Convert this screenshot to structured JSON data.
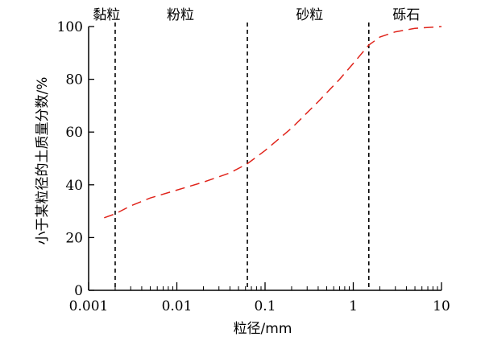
{
  "chart_data": {
    "type": "line",
    "xscale": "log",
    "xlim": [
      0.001,
      10
    ],
    "ylim": [
      0,
      100
    ],
    "xlabel": "粒径/mm",
    "ylabel": "小于某粒径的土质量分数/%",
    "x_ticks": [
      {
        "value": 0.001,
        "label": "0.001"
      },
      {
        "value": 0.01,
        "label": "0.01"
      },
      {
        "value": 0.1,
        "label": "0.1"
      },
      {
        "value": 1,
        "label": "1"
      },
      {
        "value": 10,
        "label": "10"
      }
    ],
    "y_ticks": [
      {
        "value": 0,
        "label": "0"
      },
      {
        "value": 20,
        "label": "20"
      },
      {
        "value": 40,
        "label": "40"
      },
      {
        "value": 60,
        "label": "60"
      },
      {
        "value": 80,
        "label": "80"
      },
      {
        "value": 100,
        "label": "100"
      }
    ],
    "boundaries": [
      0.002,
      0.063,
      1.5
    ],
    "regions": [
      {
        "label": "黏粒",
        "x": 0.0016
      },
      {
        "label": "粉粒",
        "x": 0.011
      },
      {
        "label": "砂粒",
        "x": 0.32
      },
      {
        "label": "砾石",
        "x": 4.0
      }
    ],
    "series": [
      {
        "color": "#e0241b",
        "points": [
          [
            0.0015,
            27.5
          ],
          [
            0.002,
            29
          ],
          [
            0.003,
            32
          ],
          [
            0.005,
            35
          ],
          [
            0.01,
            38
          ],
          [
            0.02,
            41
          ],
          [
            0.04,
            44.5
          ],
          [
            0.063,
            48
          ],
          [
            0.1,
            53
          ],
          [
            0.2,
            61.5
          ],
          [
            0.4,
            71.5
          ],
          [
            0.7,
            80
          ],
          [
            1.0,
            86
          ],
          [
            1.5,
            93
          ],
          [
            2.0,
            96
          ],
          [
            3.0,
            98
          ],
          [
            5.0,
            99.3
          ],
          [
            10,
            100
          ]
        ]
      }
    ]
  }
}
